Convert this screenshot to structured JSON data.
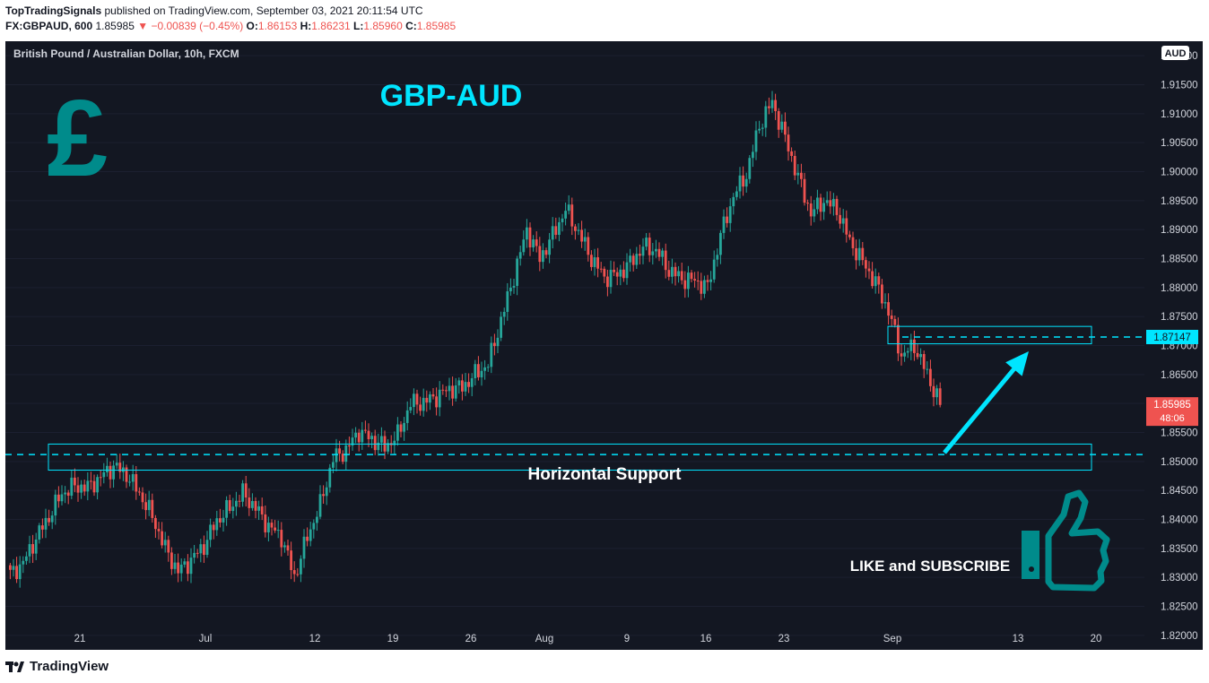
{
  "header": {
    "author": "TopTradingSignals",
    "published": "published on TradingView.com, September 03, 2021 20:11:54 UTC",
    "symbol": "FX:GBPAUD, 600",
    "price": "1.85985",
    "change_arrow": "▼",
    "change": "−0.00839 (−0.45%)",
    "o_label": "O:",
    "o": "1.86153",
    "h_label": "H:",
    "h": "1.86231",
    "l_label": "L:",
    "l": "1.85960",
    "c_label": "C:",
    "c": "1.85985"
  },
  "footer": {
    "logo_icon": "tradingview-logo-icon",
    "brand": "TradingView"
  },
  "chart_data": {
    "type": "candlestick",
    "instrument": "British Pound / Australian Dollar, 10h, FXCM",
    "title": "GBP-AUD",
    "currency_badge": "AUD",
    "y_range": [
      1.8175,
      1.9225
    ],
    "y_ticks": [
      "1.92000",
      "1.91500",
      "1.91000",
      "1.90500",
      "1.90000",
      "1.89500",
      "1.89000",
      "1.88500",
      "1.88000",
      "1.87500",
      "1.87000",
      "1.86500",
      "1.86000",
      "1.85500",
      "1.85000",
      "1.84500",
      "1.84000",
      "1.83500",
      "1.83000",
      "1.82500",
      "1.82000"
    ],
    "x_ticks": [
      "21",
      "Jul",
      "12",
      "19",
      "26",
      "Aug",
      "9",
      "16",
      "23",
      "Sep",
      "13",
      "20"
    ],
    "last_price": "1.85985",
    "countdown": "48:06",
    "resistance_level": "1.87147",
    "support_level": 1.8512,
    "annotations": {
      "support_label": "Horizontal Support",
      "cta": "LIKE and SUBSCRIBE",
      "pound_icon": "pound-sign-icon",
      "thumbs_icon": "thumbs-up-icon"
    },
    "colors": {
      "up": "#26a69a",
      "down": "#ef5350",
      "accent": "#00e5ff",
      "background": "#131722"
    },
    "close_path": [
      [
        0,
        1.8305
      ],
      [
        4,
        1.8325
      ],
      [
        8,
        1.8368
      ],
      [
        12,
        1.8405
      ],
      [
        16,
        1.8445
      ],
      [
        20,
        1.8458
      ],
      [
        24,
        1.8455
      ],
      [
        28,
        1.8473
      ],
      [
        32,
        1.8492
      ],
      [
        36,
        1.8478
      ],
      [
        40,
        1.8445
      ],
      [
        44,
        1.8405
      ],
      [
        48,
        1.835
      ],
      [
        52,
        1.831
      ],
      [
        56,
        1.833
      ],
      [
        60,
        1.8355
      ],
      [
        64,
        1.8398
      ],
      [
        68,
        1.842
      ],
      [
        72,
        1.8445
      ],
      [
        76,
        1.842
      ],
      [
        80,
        1.8388
      ],
      [
        84,
        1.837
      ],
      [
        88,
        1.83
      ],
      [
        92,
        1.837
      ],
      [
        96,
        1.8425
      ],
      [
        100,
        1.8505
      ],
      [
        104,
        1.852
      ],
      [
        108,
        1.8552
      ],
      [
        112,
        1.8538
      ],
      [
        116,
        1.8525
      ],
      [
        120,
        1.8545
      ],
      [
        124,
        1.86
      ],
      [
        128,
        1.8602
      ],
      [
        132,
        1.8612
      ],
      [
        136,
        1.8625
      ],
      [
        140,
        1.8628
      ],
      [
        144,
        1.865
      ],
      [
        148,
        1.8668
      ],
      [
        152,
        1.8743
      ],
      [
        156,
        1.882
      ],
      [
        160,
        1.89
      ],
      [
        164,
        1.885
      ],
      [
        168,
        1.889
      ],
      [
        172,
        1.8935
      ],
      [
        176,
        1.8895
      ],
      [
        180,
        1.885
      ],
      [
        184,
        1.8818
      ],
      [
        188,
        1.8822
      ],
      [
        192,
        1.8842
      ],
      [
        196,
        1.887
      ],
      [
        200,
        1.8865
      ],
      [
        204,
        1.883
      ],
      [
        208,
        1.8815
      ],
      [
        212,
        1.8812
      ],
      [
        216,
        1.88
      ],
      [
        220,
        1.889
      ],
      [
        224,
        1.8958
      ],
      [
        228,
        1.8995
      ],
      [
        232,
        1.908
      ],
      [
        236,
        1.912
      ],
      [
        240,
        1.9058
      ],
      [
        244,
        1.899
      ],
      [
        248,
        1.8928
      ],
      [
        252,
        1.895
      ],
      [
        256,
        1.8935
      ],
      [
        260,
        1.888
      ],
      [
        264,
        1.8845
      ],
      [
        268,
        1.8808
      ],
      [
        272,
        1.876
      ],
      [
        276,
        1.8682
      ],
      [
        280,
        1.87
      ],
      [
        284,
        1.865
      ],
      [
        288,
        1.8598
      ]
    ]
  }
}
